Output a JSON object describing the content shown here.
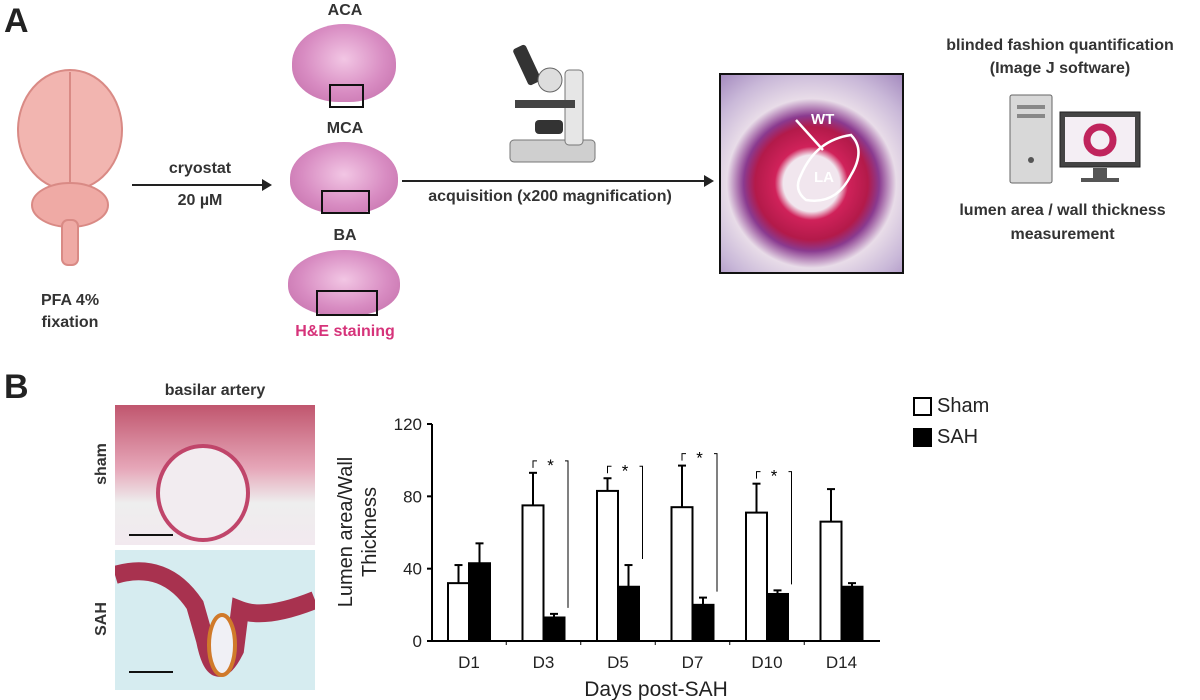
{
  "panel_a": {
    "label": "A",
    "brain_caption_1": "PFA 4%",
    "brain_caption_2": "fixation",
    "cryostat_label": "cryostat",
    "thickness_label": "20 µM",
    "slices": [
      "ACA",
      "MCA",
      "BA"
    ],
    "staining_label": "H&E staining",
    "acquisition_label": "acquisition (x200 magnification)",
    "wt_label": "WT",
    "la_label": "LA",
    "quant_title_1": "blinded fashion quantification",
    "quant_title_2": "(Image J software)",
    "measure_label_1": "lumen area / wall thickness",
    "measure_label_2": "measurement",
    "staining_color": "#d6337a"
  },
  "panel_b": {
    "label": "B",
    "histo_title": "basilar artery",
    "row_labels": [
      "sham",
      "SAH"
    ]
  },
  "chart_data": {
    "type": "bar",
    "categories": [
      "D1",
      "D3",
      "D5",
      "D7",
      "D10",
      "D14"
    ],
    "series": [
      {
        "name": "Sham",
        "color": "#ffffff",
        "values": [
          32,
          75,
          83,
          74,
          71,
          66
        ],
        "error": [
          10,
          18,
          7,
          23,
          16,
          18
        ]
      },
      {
        "name": "SAH",
        "color": "#000000",
        "values": [
          43,
          13,
          30,
          20,
          26,
          30
        ],
        "error": [
          11,
          2,
          12,
          4,
          2,
          2
        ]
      }
    ],
    "significance": [
      "",
      "*",
      "*",
      "*",
      "*",
      ""
    ],
    "xlabel": "Days post-SAH",
    "ylabel_1": "Lumen area/Wall",
    "ylabel_2": "Thickness",
    "ylim": [
      0,
      120
    ],
    "yticks": [
      "0",
      "40",
      "80",
      "120"
    ],
    "legend_position": "top-right",
    "grid": false
  }
}
